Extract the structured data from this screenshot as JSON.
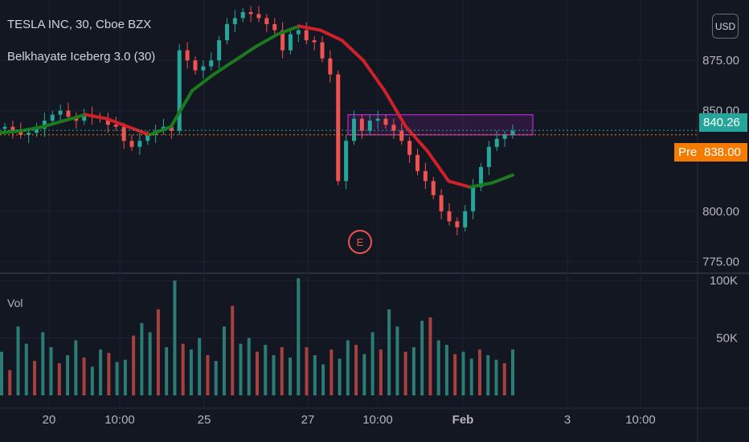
{
  "header": {
    "symbol_title": "TESLA INC, 30, Cboe BZX",
    "study_title": "Belkhayate Iceberg 3.0 (30)",
    "volume_label": "Vol",
    "currency_button": "USD"
  },
  "price_scale": {
    "ticks": [
      "875.00",
      "850.00",
      "800.00",
      "775.00"
    ],
    "last_price": "840.26",
    "pre_label": "Pre",
    "pre_price": "838.00"
  },
  "volume_scale": {
    "ticks": [
      "100K",
      "50K"
    ]
  },
  "time_axis": {
    "labels": [
      "20",
      "10:00",
      "25",
      "27",
      "10:00",
      "Feb",
      "3",
      "10:00"
    ]
  },
  "event_marker": {
    "label": "E"
  },
  "colors": {
    "background": "#131722",
    "up": "#26a69a",
    "down": "#ef5350",
    "ma_up": "#1b7a1b",
    "ma_down": "#d0202a",
    "box": "#9c27b0",
    "last_price_tag": "#26a69a",
    "pre_tag": "#f57c00"
  },
  "chart_data": {
    "type": "candlestick",
    "title": "TESLA INC, 30, Cboe BZX",
    "price_range": [
      770,
      905
    ],
    "volume_range": [
      0,
      105000
    ],
    "session_labels": [
      "20",
      "10:00",
      "25",
      "27",
      "10:00",
      "Feb",
      "3",
      "10:00"
    ],
    "price_series_approx": [
      842,
      840,
      838,
      839,
      841,
      845,
      848,
      850,
      847,
      845,
      848,
      847,
      846,
      843,
      842,
      835,
      832,
      835,
      838,
      840,
      842,
      840,
      880,
      875,
      870,
      872,
      875,
      885,
      893,
      896,
      899,
      898,
      896,
      893,
      890,
      880,
      888,
      890,
      885,
      884,
      876,
      868,
      815,
      835,
      846,
      840,
      845,
      846,
      843,
      840,
      835,
      828,
      820,
      815,
      808,
      800,
      795,
      792,
      800,
      812,
      822,
      832,
      836,
      838,
      840
    ],
    "volume_series_approx": [
      38000,
      22000,
      60000,
      45000,
      30000,
      55000,
      42000,
      28000,
      35000,
      48000,
      33000,
      25000,
      40000,
      37000,
      29000,
      31000,
      52000,
      63000,
      55000,
      75000,
      42000,
      100000,
      45000,
      40000,
      50000,
      35000,
      30000,
      60000,
      78000,
      45000,
      50000,
      38000,
      44000,
      35000,
      42000,
      33000,
      102000,
      42000,
      35000,
      27000,
      40000,
      32000,
      48000,
      44000,
      36000,
      55000,
      40000,
      75000,
      60000,
      38000,
      42000,
      65000,
      68000,
      48000,
      44000,
      36000,
      38000,
      32000,
      40000,
      35000,
      31000,
      28000,
      40000
    ],
    "moving_average_approx": [
      839,
      840,
      842,
      845,
      848,
      846,
      842,
      838,
      842,
      860,
      868,
      875,
      882,
      888,
      892,
      890,
      885,
      875,
      860,
      842,
      830,
      815,
      812,
      814,
      818
    ],
    "highlight_zone": {
      "low": 838,
      "high": 848
    },
    "reference_lines": {
      "last": 840.26,
      "premarket": 838.0
    },
    "ylabel": "",
    "xlabel": ""
  }
}
